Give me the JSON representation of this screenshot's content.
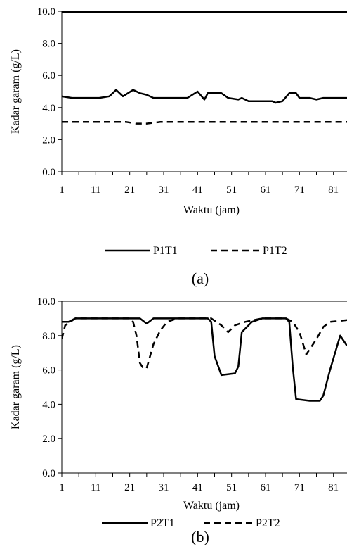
{
  "chart_data": [
    {
      "id": "a",
      "type": "line",
      "caption": "(a)",
      "xlabel": "Waktu (jam)",
      "ylabel": "Kadar garam (g/L)",
      "xlim": [
        1,
        85
      ],
      "ylim": [
        0,
        10
      ],
      "yticks": [
        "0.0",
        "2.0",
        "4.0",
        "6.0",
        "8.0",
        "10.0"
      ],
      "xticks": [
        "1",
        "11",
        "21",
        "31",
        "41",
        "51",
        "61",
        "71",
        "81"
      ],
      "legend_position": "bottom",
      "series": [
        {
          "name": "P1T1",
          "style": "solid",
          "color": "#000000",
          "points": [
            [
              1,
              4.7
            ],
            [
              4,
              4.6
            ],
            [
              8,
              4.6
            ],
            [
              12,
              4.6
            ],
            [
              15,
              4.7
            ],
            [
              17,
              5.1
            ],
            [
              19,
              4.7
            ],
            [
              22,
              5.1
            ],
            [
              24,
              4.9
            ],
            [
              26,
              4.8
            ],
            [
              28,
              4.6
            ],
            [
              31,
              4.6
            ],
            [
              35,
              4.6
            ],
            [
              38,
              4.6
            ],
            [
              41,
              5.0
            ],
            [
              43,
              4.5
            ],
            [
              44,
              4.9
            ],
            [
              48,
              4.9
            ],
            [
              50,
              4.6
            ],
            [
              53,
              4.5
            ],
            [
              54,
              4.6
            ],
            [
              56,
              4.4
            ],
            [
              60,
              4.4
            ],
            [
              63,
              4.4
            ],
            [
              64,
              4.3
            ],
            [
              66,
              4.4
            ],
            [
              68,
              4.9
            ],
            [
              70,
              4.9
            ],
            [
              71,
              4.6
            ],
            [
              74,
              4.6
            ],
            [
              76,
              4.5
            ],
            [
              78,
              4.6
            ],
            [
              81,
              4.6
            ],
            [
              85,
              4.6
            ]
          ]
        },
        {
          "name": "P1T2",
          "style": "dashed",
          "color": "#000000",
          "points": [
            [
              1,
              3.1
            ],
            [
              10,
              3.1
            ],
            [
              20,
              3.1
            ],
            [
              23,
              3.0
            ],
            [
              26,
              3.0
            ],
            [
              30,
              3.1
            ],
            [
              40,
              3.1
            ],
            [
              50,
              3.1
            ],
            [
              60,
              3.1
            ],
            [
              70,
              3.1
            ],
            [
              80,
              3.1
            ],
            [
              85,
              3.1
            ]
          ]
        }
      ]
    },
    {
      "id": "b",
      "type": "line",
      "caption": "(b)",
      "xlabel": "Waktu (jam)",
      "ylabel": "Kadar garam (g/L)",
      "xlim": [
        1,
        85
      ],
      "ylim": [
        0,
        10
      ],
      "yticks": [
        "0.0",
        "2.0",
        "4.0",
        "6.0",
        "8.0",
        "10.0"
      ],
      "xticks": [
        "1",
        "11",
        "21",
        "31",
        "41",
        "51",
        "61",
        "71",
        "81"
      ],
      "legend_position": "bottom",
      "series": [
        {
          "name": "P2T1",
          "style": "solid",
          "color": "#000000",
          "points": [
            [
              1,
              8.8
            ],
            [
              3,
              8.8
            ],
            [
              5,
              9.0
            ],
            [
              10,
              9.0
            ],
            [
              20,
              9.0
            ],
            [
              24,
              9.0
            ],
            [
              26,
              8.7
            ],
            [
              28,
              9.0
            ],
            [
              35,
              9.0
            ],
            [
              41,
              9.0
            ],
            [
              44,
              9.0
            ],
            [
              45,
              8.8
            ],
            [
              46,
              6.8
            ],
            [
              48,
              5.7
            ],
            [
              52,
              5.8
            ],
            [
              53,
              6.2
            ],
            [
              54,
              8.2
            ],
            [
              57,
              8.8
            ],
            [
              60,
              9.0
            ],
            [
              67,
              9.0
            ],
            [
              68,
              8.8
            ],
            [
              69,
              6.2
            ],
            [
              70,
              4.3
            ],
            [
              74,
              4.2
            ],
            [
              77,
              4.2
            ],
            [
              78,
              4.5
            ],
            [
              80,
              6.0
            ],
            [
              83,
              8.0
            ],
            [
              85,
              7.4
            ]
          ]
        },
        {
          "name": "P2T2",
          "style": "dashed",
          "color": "#000000",
          "points": [
            [
              1,
              7.8
            ],
            [
              2,
              8.6
            ],
            [
              5,
              9.0
            ],
            [
              15,
              9.0
            ],
            [
              21,
              9.0
            ],
            [
              22,
              8.8
            ],
            [
              23,
              8.0
            ],
            [
              24,
              6.4
            ],
            [
              25,
              6.1
            ],
            [
              26,
              6.1
            ],
            [
              28,
              7.5
            ],
            [
              30,
              8.3
            ],
            [
              32,
              8.8
            ],
            [
              35,
              9.0
            ],
            [
              45,
              9.0
            ],
            [
              48,
              8.6
            ],
            [
              50,
              8.2
            ],
            [
              52,
              8.6
            ],
            [
              55,
              8.8
            ],
            [
              60,
              9.0
            ],
            [
              67,
              9.0
            ],
            [
              69,
              8.8
            ],
            [
              71,
              8.2
            ],
            [
              73,
              6.9
            ],
            [
              76,
              7.8
            ],
            [
              78,
              8.5
            ],
            [
              80,
              8.8
            ],
            [
              85,
              8.9
            ]
          ]
        }
      ]
    }
  ]
}
